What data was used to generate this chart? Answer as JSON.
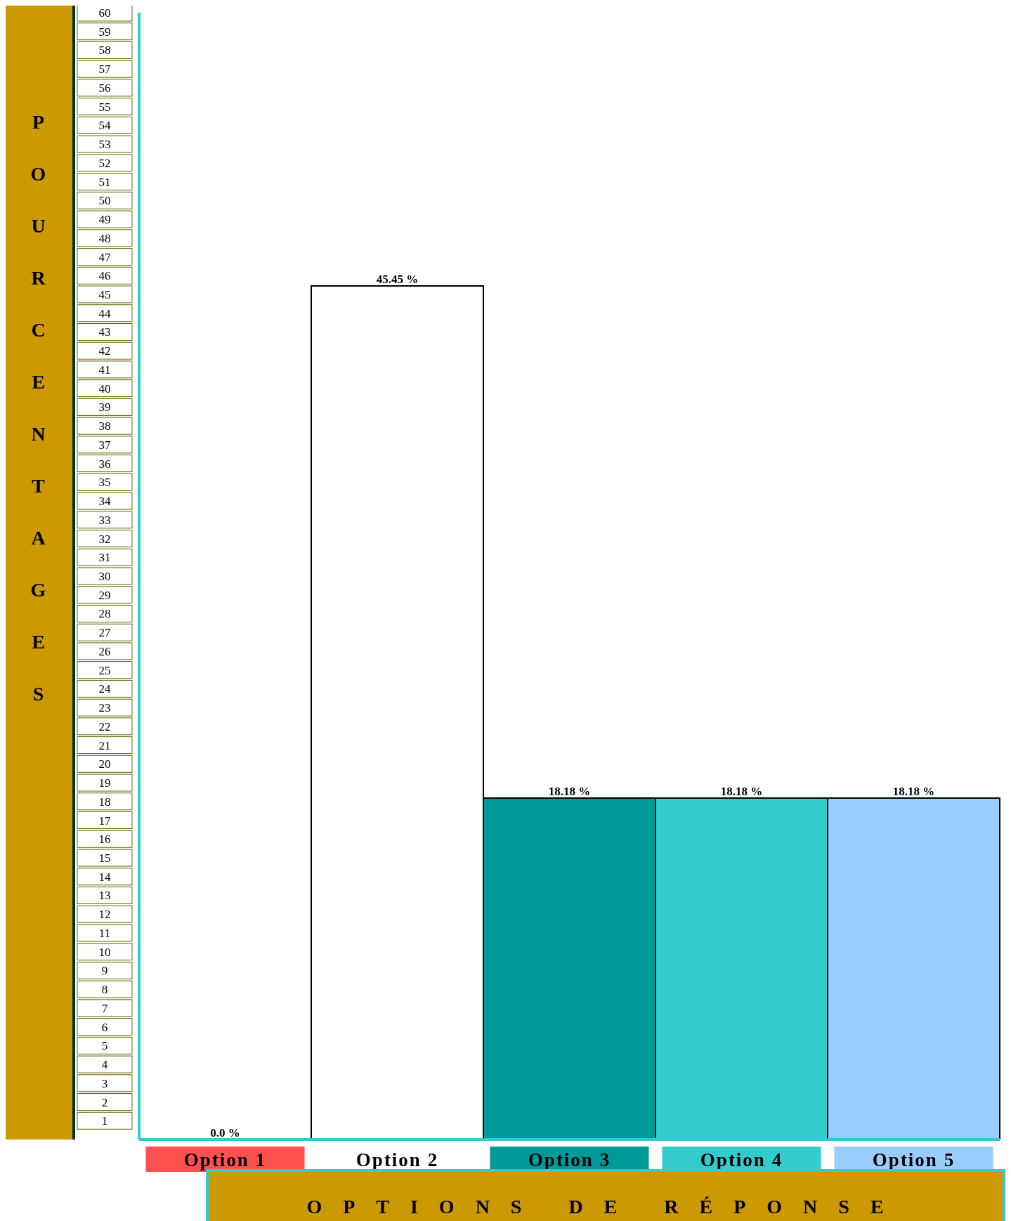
{
  "chart_data": {
    "type": "bar",
    "xlabel": "OPTIONS DE RÉPONSE",
    "ylabel": "POURCENTAGES",
    "categories": [
      "Option 1",
      "Option 2",
      "Option 3",
      "Option 4",
      "Option 5"
    ],
    "values": [
      0,
      45.45,
      18.18,
      18.18,
      18.18
    ],
    "value_labels": [
      "0.0 %",
      "45.45 %",
      "18.18 %",
      "18.18 %",
      "18.18 %"
    ],
    "colors": [
      "#ff5050",
      "#ffffff",
      "#009999",
      "#33cccc",
      "#99ccff"
    ],
    "ylim": [
      0,
      60
    ],
    "yticks": [
      1,
      2,
      3,
      4,
      5,
      6,
      7,
      8,
      9,
      10,
      11,
      12,
      13,
      14,
      15,
      16,
      17,
      18,
      19,
      20,
      21,
      22,
      23,
      24,
      25,
      26,
      27,
      28,
      29,
      30,
      31,
      32,
      33,
      34,
      35,
      36,
      37,
      38,
      39,
      40,
      41,
      42,
      43,
      44,
      45,
      46,
      47,
      48,
      49,
      50,
      51,
      52,
      53,
      54,
      55,
      56,
      57,
      58,
      59,
      60
    ],
    "grid": false,
    "legend": false
  }
}
